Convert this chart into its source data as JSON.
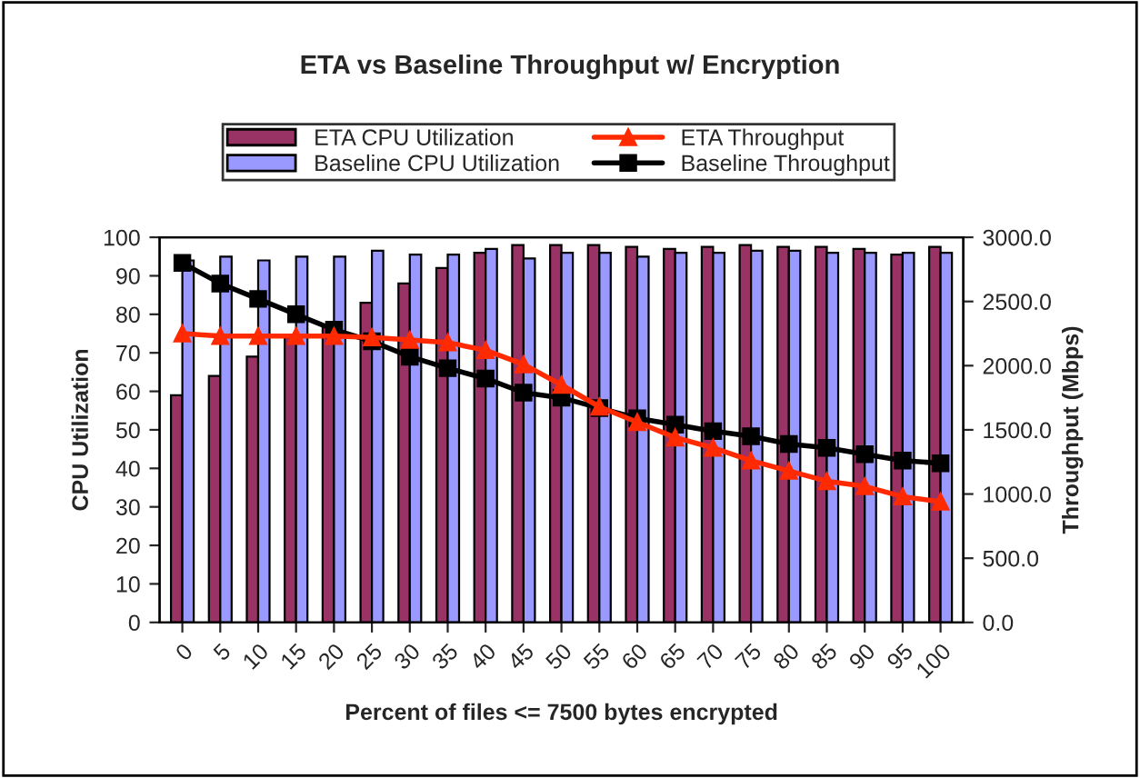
{
  "chart_data": {
    "type": "bar",
    "title": "ETA vs Baseline Throughput w/ Encryption",
    "xlabel": "Percent of files <= 7500 bytes encrypted",
    "ylabel": "CPU Utilization",
    "y2label": "Throughput (Mbps)",
    "categories": [
      "0",
      "5",
      "10",
      "15",
      "20",
      "25",
      "30",
      "35",
      "40",
      "45",
      "50",
      "55",
      "60",
      "65",
      "70",
      "75",
      "80",
      "85",
      "90",
      "95",
      "100"
    ],
    "series": [
      {
        "name": "ETA CPU Utilization",
        "color": "#993366",
        "values": [
          59,
          64,
          69,
          74,
          77,
          83,
          88,
          92,
          96,
          98,
          98,
          98,
          97.5,
          97,
          97.5,
          98,
          97.5,
          97.5,
          97,
          95.5,
          97.5
        ]
      },
      {
        "name": "Baseline CPU Utilization",
        "color": "#9999ff",
        "values": [
          94,
          95,
          94,
          95,
          95,
          96.5,
          95.5,
          95.5,
          97,
          94.5,
          96,
          96,
          95,
          96,
          96,
          96.5,
          96.5,
          96,
          96,
          96,
          96
        ]
      },
      {
        "name": "ETA Throughput",
        "type": "line",
        "axis": "y2",
        "marker": "triangle",
        "color": "#ff2a00",
        "values": [
          2250,
          2230,
          2230,
          2230,
          2230,
          2220,
          2200,
          2180,
          2120,
          2010,
          1850,
          1680,
          1560,
          1440,
          1360,
          1260,
          1180,
          1100,
          1060,
          980,
          940
        ]
      },
      {
        "name": "Baseline Throughput",
        "type": "line",
        "axis": "y2",
        "marker": "square",
        "color": "#000000",
        "values": [
          2800,
          2640,
          2520,
          2400,
          2280,
          2190,
          2070,
          1980,
          1900,
          1790,
          1750,
          1670,
          1590,
          1540,
          1490,
          1450,
          1390,
          1360,
          1310,
          1260,
          1240
        ]
      }
    ],
    "ylim": [
      0,
      100
    ],
    "yticks": [
      0,
      10,
      20,
      30,
      40,
      50,
      60,
      70,
      80,
      90,
      100
    ],
    "y2lim": [
      0,
      3000
    ],
    "y2ticks": [
      {
        "value": 0,
        "label": "0.0"
      },
      {
        "value": 500,
        "label": "500.0"
      },
      {
        "value": 1000,
        "label": "1000.0"
      },
      {
        "value": 1500,
        "label": "1500.0"
      },
      {
        "value": 2000,
        "label": "2000.0"
      },
      {
        "value": 2500,
        "label": "2500.0"
      },
      {
        "value": 3000,
        "label": "3000.0"
      }
    ],
    "grid": false,
    "legend": "top"
  }
}
